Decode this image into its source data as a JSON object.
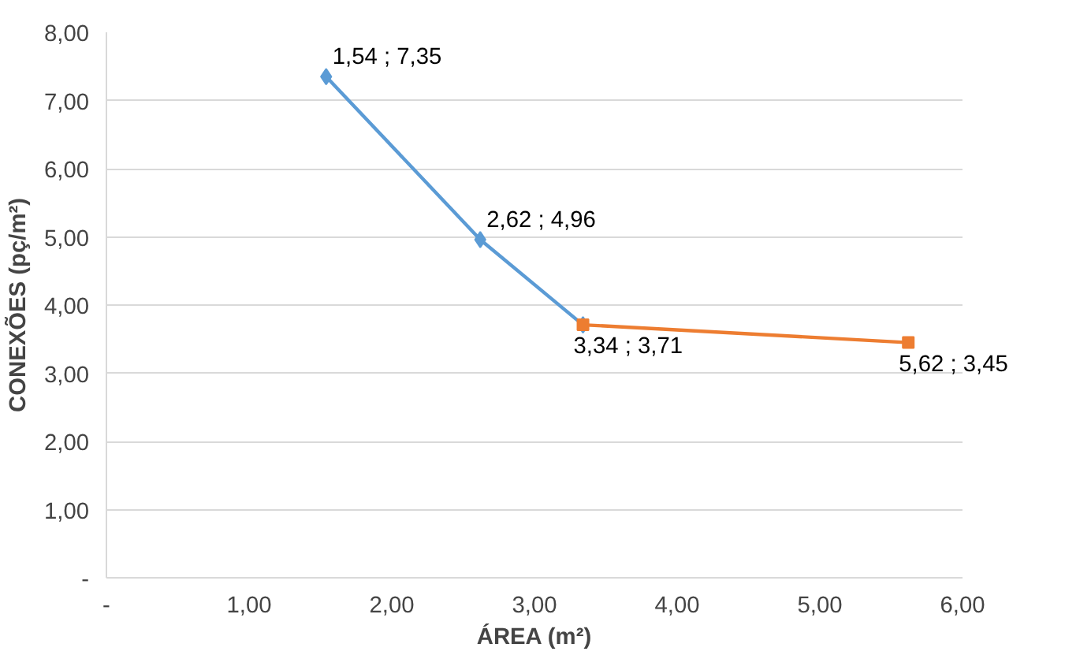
{
  "chart_data": {
    "type": "line",
    "xlabel": "ÁREA (m²)",
    "ylabel": "CONEXÕES (pç/m²)",
    "xlim": [
      0,
      6
    ],
    "ylim": [
      0,
      8
    ],
    "xticks": [
      {
        "value": 0,
        "label": "-"
      },
      {
        "value": 1,
        "label": "1,00"
      },
      {
        "value": 2,
        "label": "2,00"
      },
      {
        "value": 3,
        "label": "3,00"
      },
      {
        "value": 4,
        "label": "4,00"
      },
      {
        "value": 5,
        "label": "5,00"
      },
      {
        "value": 6,
        "label": "6,00"
      }
    ],
    "yticks": [
      {
        "value": 0,
        "label": "-"
      },
      {
        "value": 1,
        "label": "1,00"
      },
      {
        "value": 2,
        "label": "2,00"
      },
      {
        "value": 3,
        "label": "3,00"
      },
      {
        "value": 4,
        "label": "4,00"
      },
      {
        "value": 5,
        "label": "5,00"
      },
      {
        "value": 6,
        "label": "6,00"
      },
      {
        "value": 7,
        "label": "7,00"
      },
      {
        "value": 8,
        "label": "8,00"
      }
    ],
    "grid": "y",
    "series": [
      {
        "color": "#5b9bd5",
        "marker": "diamond",
        "x": [
          1.54,
          2.62,
          3.34
        ],
        "values": [
          7.35,
          4.96,
          3.71
        ],
        "value_labels": [
          "1,54 ;  7,35",
          "2,62 ;  4,96",
          null
        ]
      },
      {
        "color": "#ed7d31",
        "marker": "square",
        "x": [
          3.34,
          5.62
        ],
        "values": [
          3.71,
          3.45
        ],
        "value_labels": [
          "3,34 ;  3,71",
          "5,62 ;  3,45"
        ]
      }
    ]
  }
}
